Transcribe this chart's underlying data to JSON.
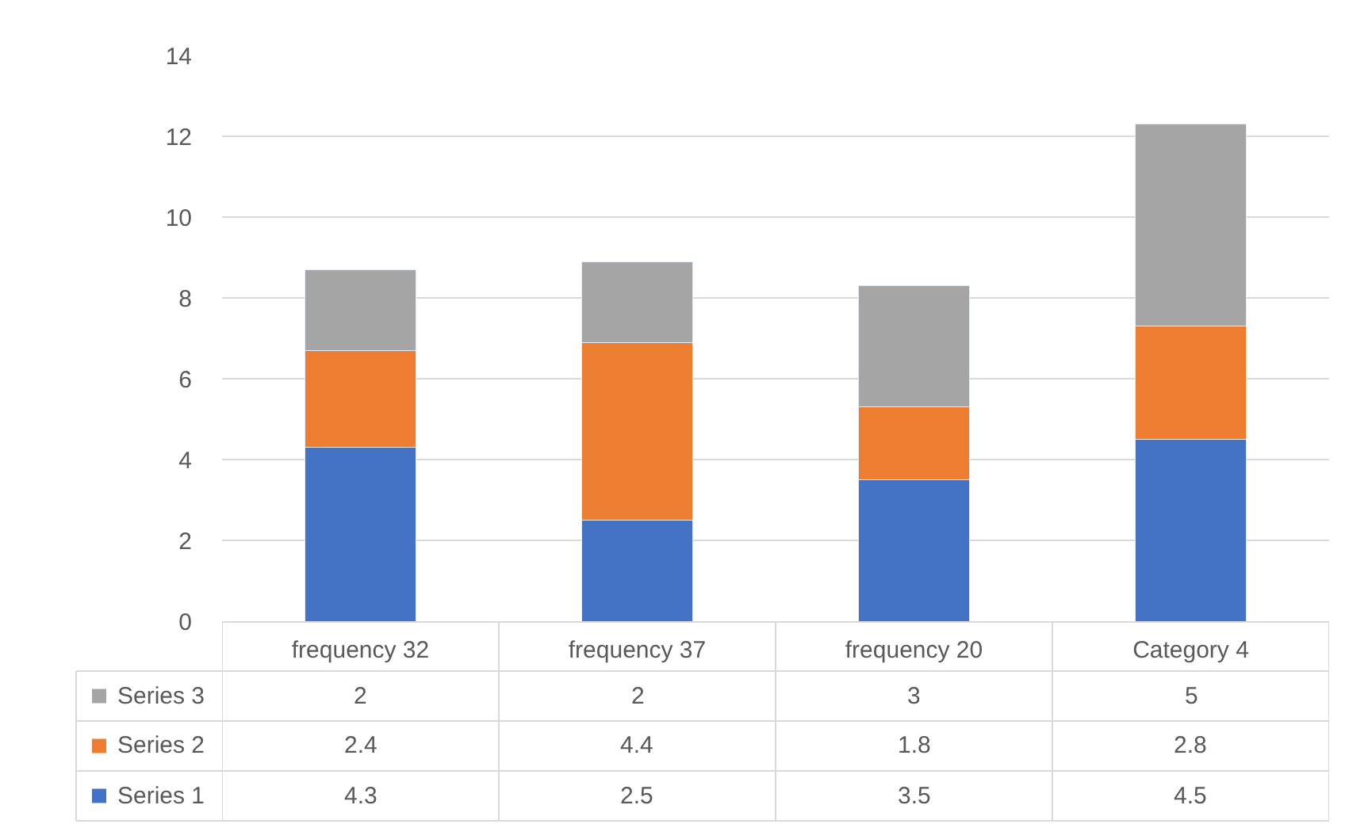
{
  "chart_data": {
    "type": "bar",
    "stacked": true,
    "categories": [
      "frequency 32",
      "frequency 37",
      "frequency 20",
      "Category 4"
    ],
    "series": [
      {
        "name": "Series 1",
        "color": "#4472c4",
        "values": [
          4.3,
          2.5,
          3.5,
          4.5
        ]
      },
      {
        "name": "Series 2",
        "color": "#ed7d31",
        "values": [
          2.4,
          4.4,
          1.8,
          2.8
        ]
      },
      {
        "name": "Series 3",
        "color": "#a5a5a5",
        "values": [
          2,
          2,
          3,
          5
        ]
      }
    ],
    "ylim": [
      0,
      14
    ],
    "yticks": [
      0,
      2,
      4,
      6,
      8,
      10,
      12,
      14
    ],
    "grid": "y",
    "data_labels": true,
    "legend": "bottom left"
  }
}
